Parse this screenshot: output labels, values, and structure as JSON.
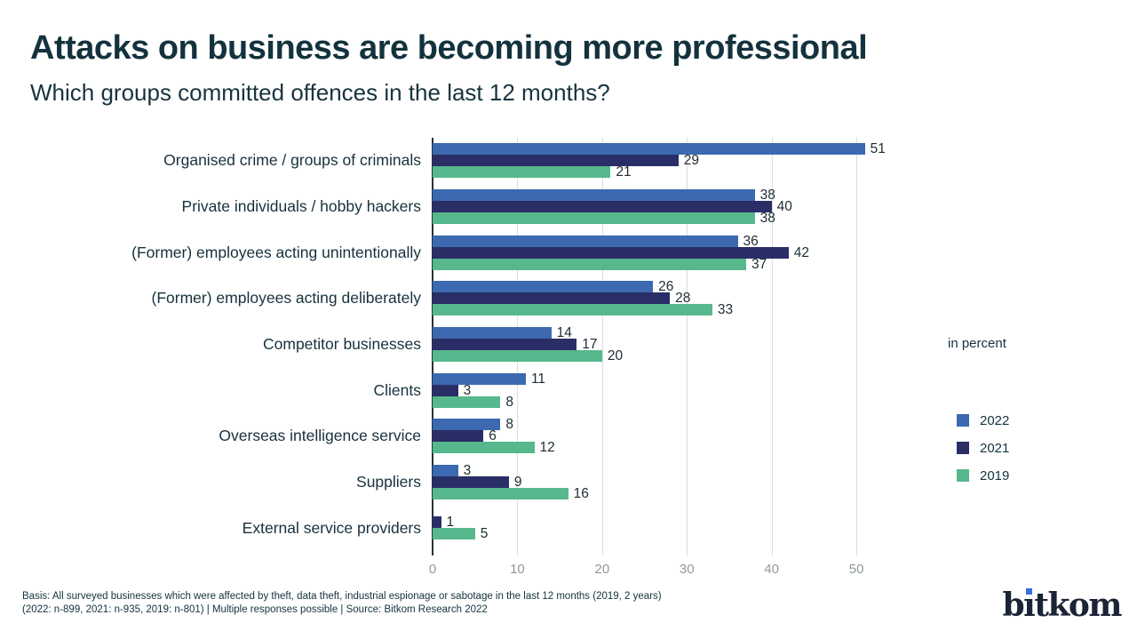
{
  "header": {
    "title": "Attacks on business are becoming more professional",
    "subtitle": "Which groups committed offences in the last 12 months?"
  },
  "chart_data": {
    "type": "bar",
    "orientation": "horizontal",
    "unit_label": "in percent",
    "categories": [
      "Organised crime / groups of criminals",
      "Private individuals / hobby hackers",
      "(Former) employees acting unintentionally",
      "(Former) employees acting deliberately",
      "Competitor businesses",
      "Clients",
      "Overseas intelligence service",
      "Suppliers",
      "External service providers"
    ],
    "series": [
      {
        "name": "2022",
        "color": "#3c69b0",
        "values": [
          51,
          38,
          36,
          26,
          14,
          11,
          8,
          3,
          null
        ]
      },
      {
        "name": "2021",
        "color": "#292e66",
        "values": [
          29,
          40,
          42,
          28,
          17,
          3,
          6,
          9,
          1
        ]
      },
      {
        "name": "2019",
        "color": "#56b88c",
        "values": [
          21,
          38,
          37,
          33,
          20,
          8,
          12,
          16,
          5
        ]
      }
    ],
    "xlim": [
      0,
      52.4
    ],
    "xticks": [
      0,
      10,
      20,
      30,
      40,
      50
    ],
    "grid": "vertical",
    "legend_position": "right",
    "value_labels": "shown at bar ends"
  },
  "legend": [
    {
      "label": "2022",
      "color": "#3c69b0"
    },
    {
      "label": "2021",
      "color": "#292e66"
    },
    {
      "label": "2019",
      "color": "#56b88c"
    }
  ],
  "footer": {
    "line1": "Basis: All surveyed businesses which were affected by theft, data theft, industrial espionage or sabotage in the last 12 months (2019, 2 years)",
    "line2": "(2022: n-899, 2021: n-935, 2019: n-801) | Multiple responses possible | Source: Bitkom Research 2022"
  },
  "logo": {
    "text": "bitkom",
    "prefix": "b",
    "dotless_i": "ı",
    "suffix": "tkom",
    "dot_color": "#3c6cdd"
  }
}
